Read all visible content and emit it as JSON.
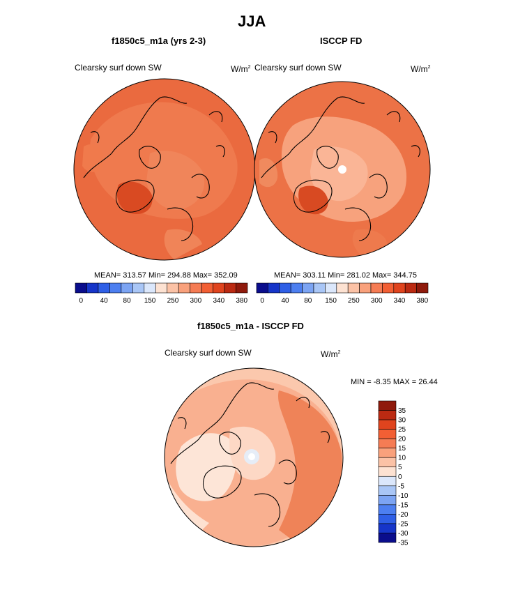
{
  "figure": {
    "title": "JJA"
  },
  "panels": [
    {
      "title": "f1850c5_m1a (yrs 2-3)",
      "variable": "Clearsky surf down SW",
      "units_base": "W/m",
      "units_exp": "2",
      "stats": "MEAN= 313.57  Min= 294.88  Max= 352.09"
    },
    {
      "title": "ISCCP FD",
      "variable": "Clearsky surf down SW",
      "units_base": "W/m",
      "units_exp": "2",
      "stats": "MEAN= 303.11  Min= 281.02  Max= 344.75"
    },
    {
      "title": "f1850c5_m1a - ISCCP FD",
      "variable": "Clearsky surf down SW",
      "units_base": "W/m",
      "units_exp": "2",
      "stats": "MIN =  -8.35 MAX =  26.44"
    }
  ],
  "colorbar_abs": {
    "colors": [
      "#0a0d8c",
      "#1635c9",
      "#2f5fe6",
      "#4d7ff0",
      "#7ca4f3",
      "#a9c6f6",
      "#dbe7fb",
      "#fde2d2",
      "#fbc2a6",
      "#f9a17c",
      "#f57c54",
      "#f25f34",
      "#e0441e",
      "#bb2a12",
      "#8f1a0c"
    ],
    "tick_labels": [
      "0",
      "40",
      "80",
      "150",
      "250",
      "300",
      "340",
      "380"
    ]
  },
  "colorbar_diff": {
    "colors": [
      "#0a0d8c",
      "#1635c9",
      "#2f5fe6",
      "#4d7ff0",
      "#7ca4f3",
      "#a9c6f6",
      "#dbe7fb",
      "#fde2d2",
      "#fbc2a6",
      "#f9a17c",
      "#f57c54",
      "#f25f34",
      "#e0441e",
      "#bb2a12",
      "#8f1a0c"
    ],
    "tick_labels": [
      "35",
      "30",
      "25",
      "20",
      "15",
      "10",
      "5",
      "0",
      "-5",
      "-10",
      "-15",
      "-20",
      "-25",
      "-30",
      "-35"
    ]
  }
}
